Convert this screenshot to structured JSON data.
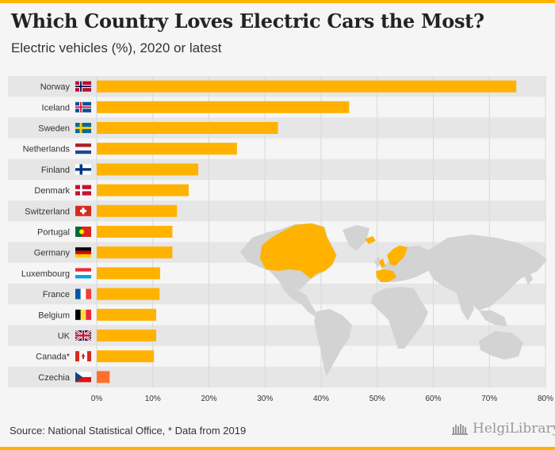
{
  "header": {
    "title": "Which Country Loves Electric Cars the Most?",
    "subtitle": "Electric vehicles (%), 2020 or latest"
  },
  "footer": {
    "source": "Source: National Statistical Office, * Data from 2019",
    "brand": "HelgiLibrary."
  },
  "colors": {
    "bar": "#ffb300",
    "highlight": "#ff6f2c",
    "map_land": "#d3d3d3",
    "map_highlight": "#ffb300"
  },
  "chart_data": {
    "type": "bar",
    "orientation": "horizontal",
    "categories": [
      "Norway",
      "Iceland",
      "Sweden",
      "Netherlands",
      "Finland",
      "Denmark",
      "Switzerland",
      "Portugal",
      "Germany",
      "Luxembourg",
      "France",
      "Belgium",
      "UK",
      "Canada*",
      "Czechia"
    ],
    "values": [
      74.8,
      45.0,
      32.3,
      25.0,
      18.1,
      16.4,
      14.3,
      13.5,
      13.5,
      11.3,
      11.2,
      10.6,
      10.6,
      10.2,
      2.3
    ],
    "flags": [
      "norway-flag",
      "iceland-flag",
      "sweden-flag",
      "netherlands-flag",
      "finland-flag",
      "denmark-flag",
      "switzerland-flag",
      "portugal-flag",
      "germany-flag",
      "luxembourg-flag",
      "france-flag",
      "belgium-flag",
      "uk-flag",
      "canada-flag",
      "czechia-flag"
    ],
    "highlighted": [
      "Czechia"
    ],
    "x_ticks": [
      "0%",
      "10%",
      "20%",
      "30%",
      "40%",
      "50%",
      "60%",
      "70%",
      "80%"
    ],
    "xlim": [
      0,
      80
    ],
    "grid": true
  }
}
